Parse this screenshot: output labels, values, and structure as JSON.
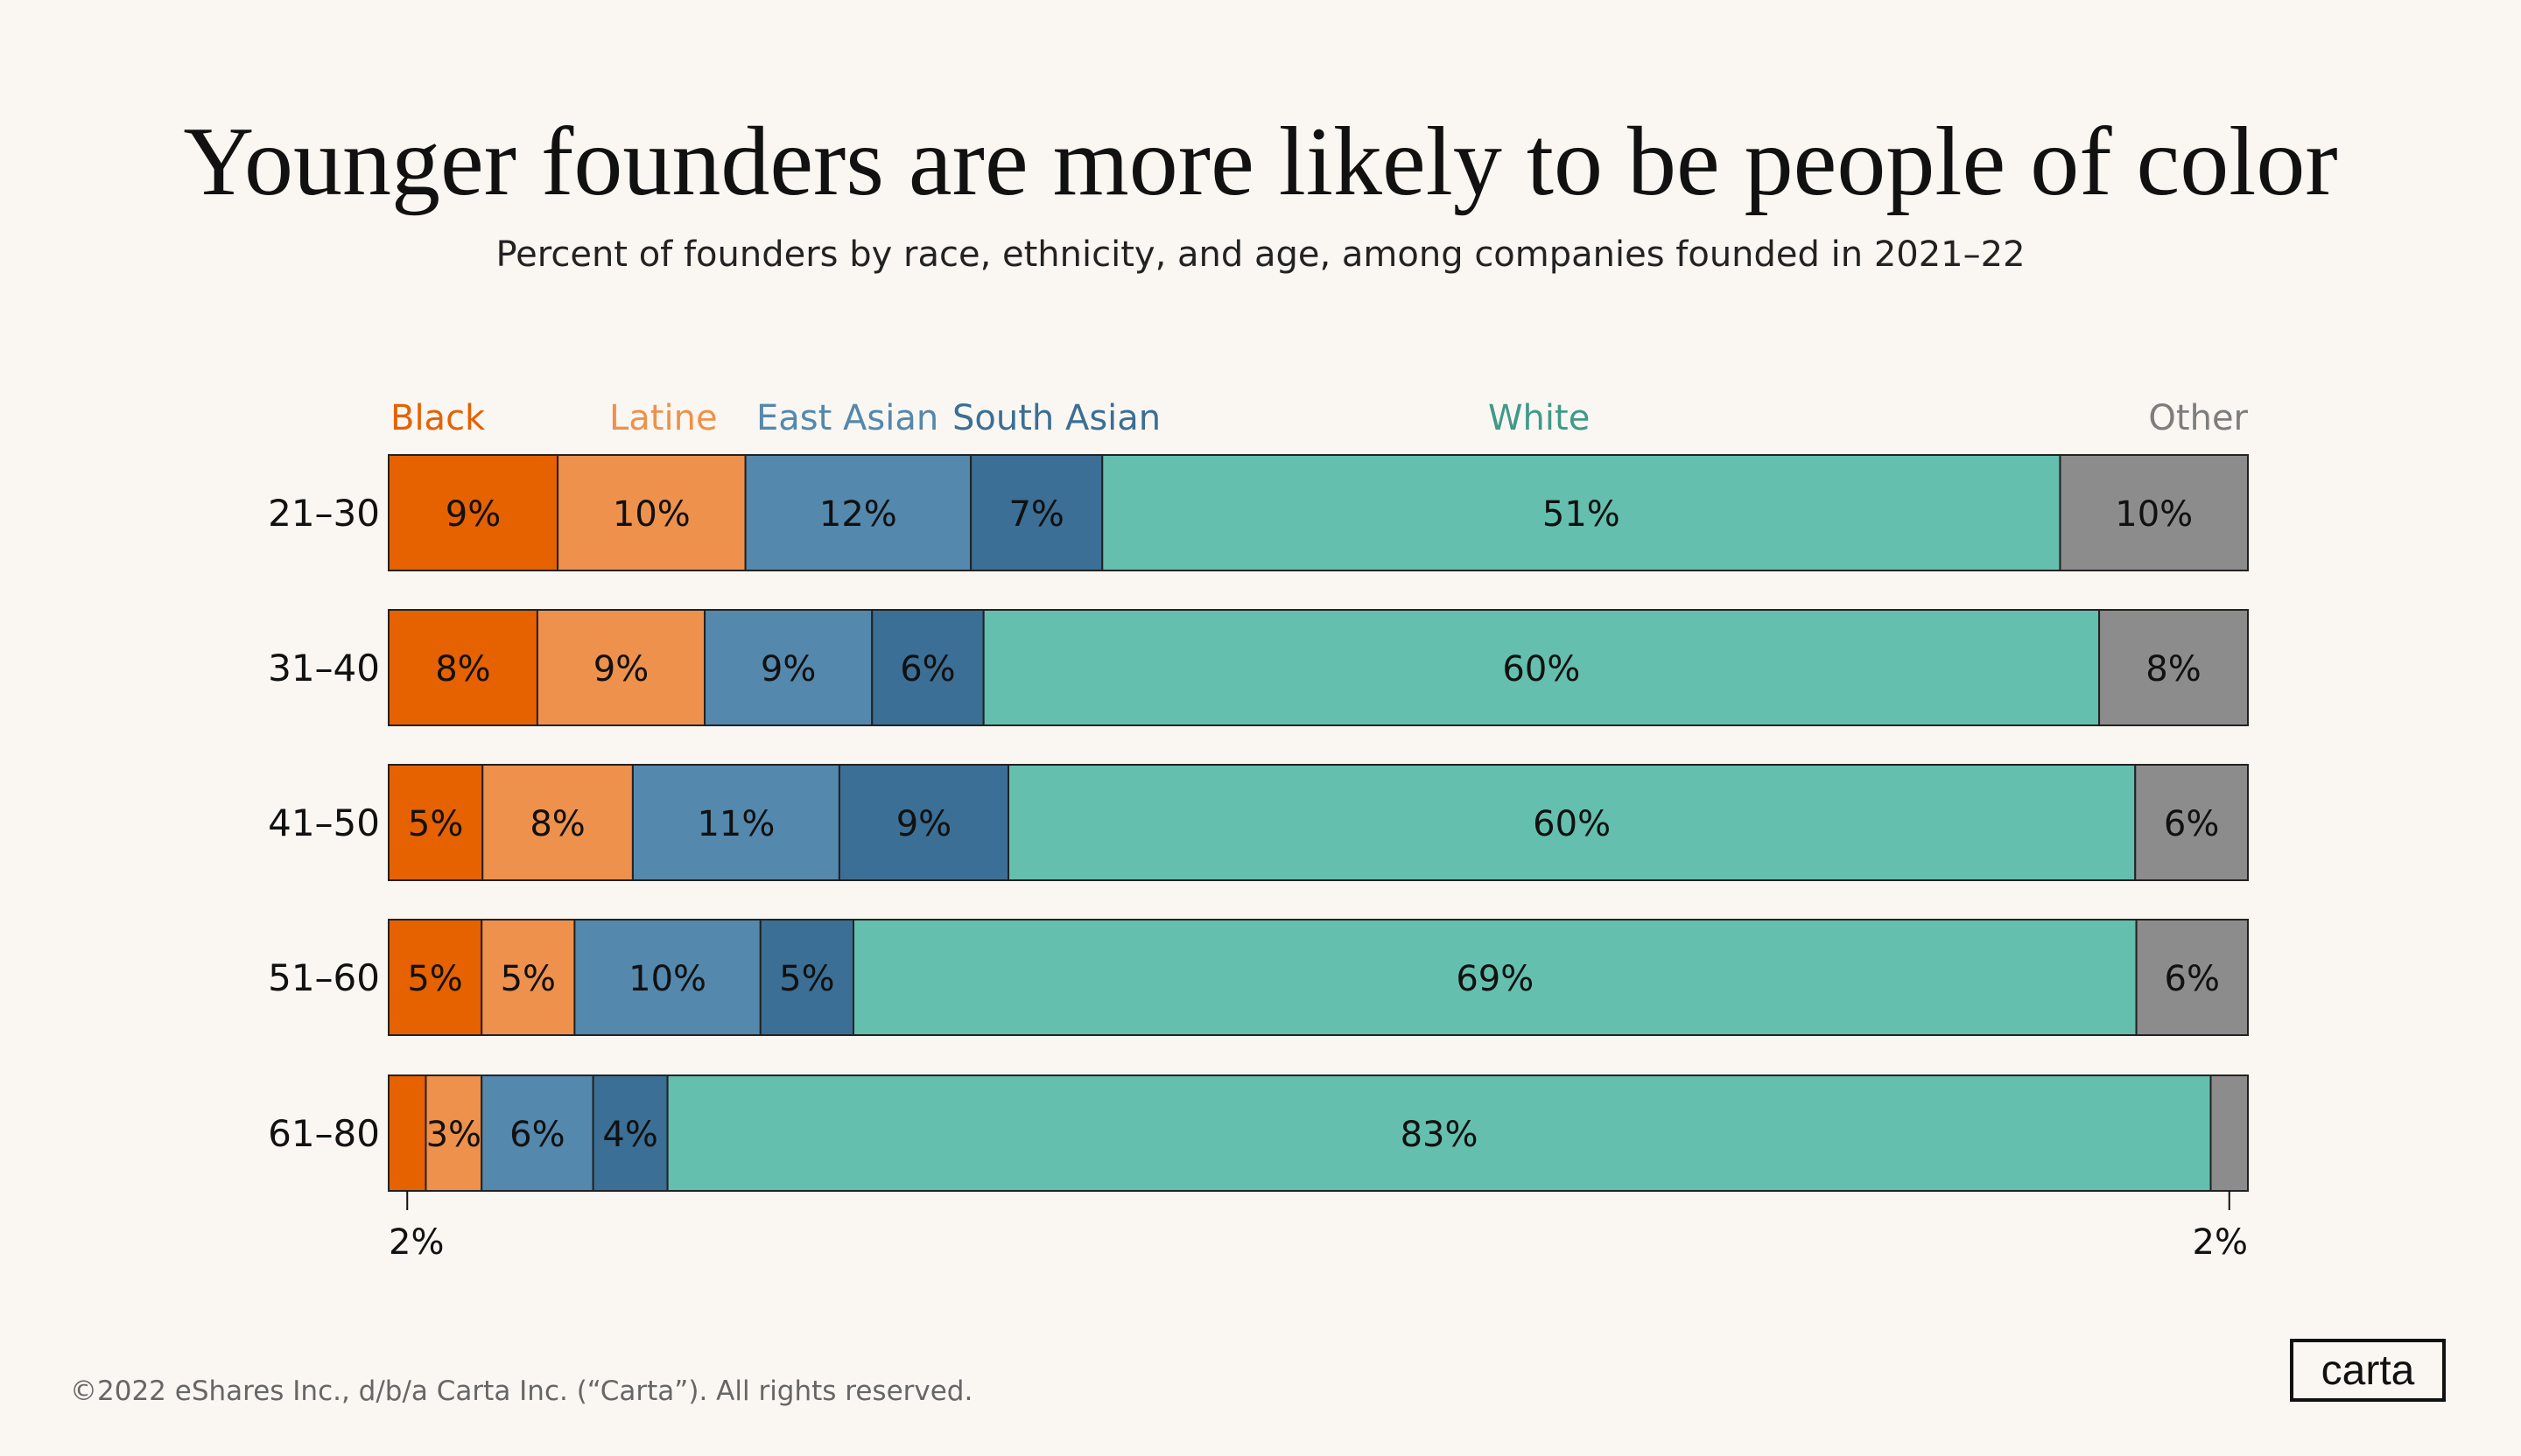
{
  "title": "Younger founders are more likely to be people of color",
  "subtitle": "Percent of founders by race, ethnicity, and age, among companies founded in 2021–22",
  "footer": "©2022 eShares Inc., d/b/a Carta Inc. (“Carta”). All rights reserved.",
  "logo_text": "carta",
  "chart_data": {
    "type": "bar",
    "orientation": "horizontal",
    "stacked": true,
    "title": "Younger founders are more likely to be people of color",
    "subtitle": "Percent of founders by race, ethnicity, and age, among companies founded in 2021–22",
    "categories": [
      "21–30",
      "31–40",
      "41–50",
      "51–60",
      "61–80"
    ],
    "legend_placement": "top",
    "grid": false,
    "series": [
      {
        "name": "Black",
        "color": "#e66100",
        "values": [
          9,
          8,
          5,
          5,
          2
        ]
      },
      {
        "name": "Latine",
        "color": "#ee914c",
        "values": [
          10,
          9,
          8,
          5,
          3
        ]
      },
      {
        "name": "East Asian",
        "color": "#5488ad",
        "values": [
          12,
          9,
          11,
          10,
          6
        ]
      },
      {
        "name": "South Asian",
        "color": "#3b6f95",
        "values": [
          7,
          6,
          9,
          5,
          4
        ]
      },
      {
        "name": "White",
        "color": "#64bfae",
        "values": [
          51,
          60,
          60,
          69,
          83
        ]
      },
      {
        "name": "Other",
        "color": "#8c8c8c",
        "values": [
          10,
          8,
          6,
          6,
          2
        ]
      }
    ],
    "value_suffix": "%"
  }
}
